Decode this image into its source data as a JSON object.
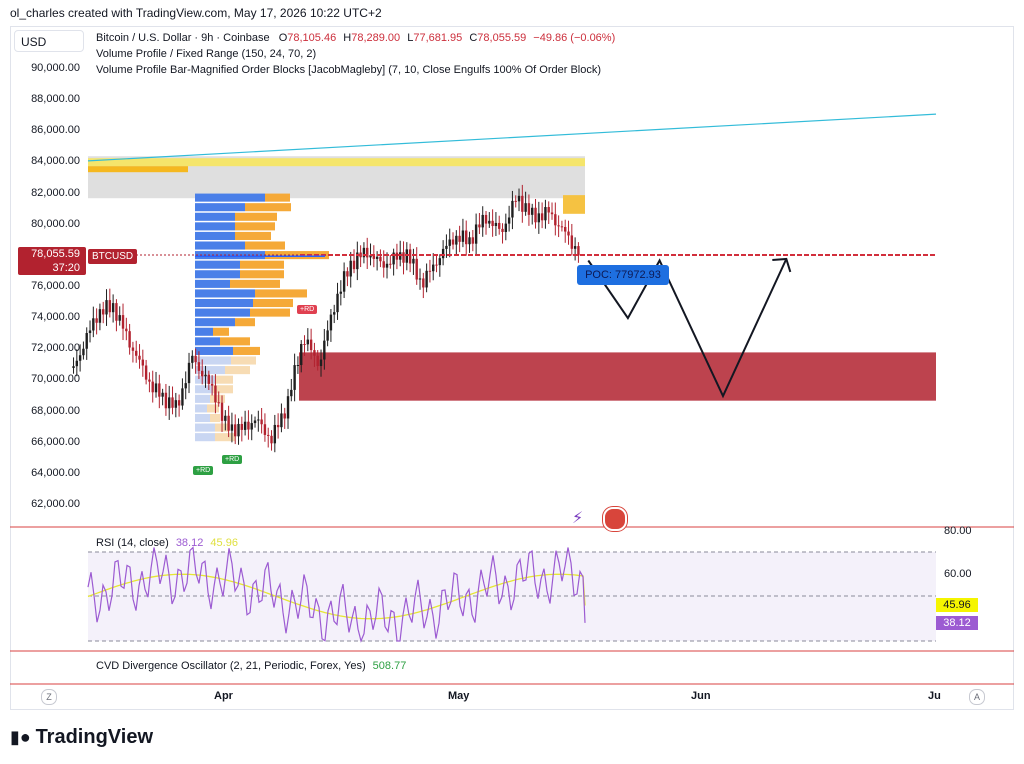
{
  "credit": "ol_charles created with TradingView.com, May 17, 2026 10:22 UTC+2",
  "currency": "USD",
  "legend": {
    "symbol": "Bitcoin / U.S. Dollar · 9h · Coinbase",
    "o_label": "O",
    "o_value": "78,105.46",
    "h_label": "H",
    "h_value": "78,289.00",
    "l_label": "L",
    "l_value": "77,681.95",
    "c_label": "C",
    "c_value": "78,055.59",
    "change": "−49.86 (−0.06%)",
    "line2": "Volume Profile / Fixed Range (150, 24, 70, 2)",
    "line3": "Volume Profile Bar-Magnified Order Blocks [JacobMagleby] (7, 10, Close Engulfs 100% Of Order Block)"
  },
  "price_tag": {
    "price": "78,055.59",
    "countdown": "37:20",
    "symbol": "BTCUSD"
  },
  "poc_label": "POC: 77972.93",
  "rd_labels": [
    "+RD",
    "+RD",
    "+RD"
  ],
  "rsi": {
    "title": "RSI (14, close)",
    "value1": "38.12",
    "value2": "45.96",
    "axis": [
      "80.00",
      "60.00"
    ]
  },
  "cvd": {
    "title": "CVD Divergence Oscillator (2, 21, Periodic, Forex, Yes)",
    "value": "508.77"
  },
  "bottom": {
    "left_btn": "Z",
    "right_btn": "A"
  },
  "footer": {
    "brand": "TradingView"
  },
  "colors": {
    "up": "#089981",
    "down": "#b2222f",
    "zone": "#b2222f",
    "poc": "#1e6fe0",
    "trend": "#33bcd9",
    "rsi": "#9c5bd2",
    "rsi_ma": "#e6e633"
  },
  "chart_data": {
    "type": "candlestick",
    "title": "Bitcoin / U.S. Dollar · 9h · Coinbase",
    "y_ticks": [
      90000,
      88000,
      86000,
      84000,
      82000,
      80000,
      78000,
      76000,
      74000,
      72000,
      70000,
      68000,
      66000,
      64000,
      62000
    ],
    "y_tick_labels": [
      "90,000.00",
      "88,000.00",
      "86,000.00",
      "84,000.00",
      "82,000.00",
      "80,000.00",
      "78,000.00",
      "76,000.00",
      "74,000.00",
      "72,000.00",
      "70,000.00",
      "68,000.00",
      "66,000.00",
      "64,000.00",
      "62,000.00"
    ],
    "ylim": [
      60500,
      92000
    ],
    "x_labels": [
      "Apr",
      "May",
      "Jun",
      "Ju"
    ],
    "price_path": [
      {
        "d": "Mar 13",
        "p": 70800
      },
      {
        "d": "Mar 16",
        "p": 74300
      },
      {
        "d": "Mar 18",
        "p": 74800
      },
      {
        "d": "Mar 20",
        "p": 72500
      },
      {
        "d": "Mar 23",
        "p": 69500
      },
      {
        "d": "Mar 26",
        "p": 68200
      },
      {
        "d": "Mar 28",
        "p": 71500
      },
      {
        "d": "Mar 31",
        "p": 69000
      },
      {
        "d": "Apr 1",
        "p": 67200
      },
      {
        "d": "Apr 3",
        "p": 66800
      },
      {
        "d": "Apr 5",
        "p": 67500
      },
      {
        "d": "Apr 7",
        "p": 66200
      },
      {
        "d": "Apr 9",
        "p": 68500
      },
      {
        "d": "Apr 11",
        "p": 72800
      },
      {
        "d": "Apr 13",
        "p": 71000
      },
      {
        "d": "Apr 15",
        "p": 75000
      },
      {
        "d": "Apr 17",
        "p": 77500
      },
      {
        "d": "Apr 19",
        "p": 78300
      },
      {
        "d": "Apr 21",
        "p": 77400
      },
      {
        "d": "Apr 24",
        "p": 78200
      },
      {
        "d": "Apr 26",
        "p": 76200
      },
      {
        "d": "Apr 28",
        "p": 77800
      },
      {
        "d": "Apr 30",
        "p": 79200
      },
      {
        "d": "May 2",
        "p": 79000
      },
      {
        "d": "May 4",
        "p": 80500
      },
      {
        "d": "May 6",
        "p": 79500
      },
      {
        "d": "May 8",
        "p": 81800
      },
      {
        "d": "May 10",
        "p": 80500
      },
      {
        "d": "May 12",
        "p": 80800
      },
      {
        "d": "May 14",
        "p": 79500
      },
      {
        "d": "May 16",
        "p": 78055
      }
    ],
    "projection_path": [
      {
        "d": "May 17",
        "p": 77700
      },
      {
        "d": "May 22",
        "p": 74000
      },
      {
        "d": "May 26",
        "p": 77700
      },
      {
        "d": "Jun 3",
        "p": 69000
      },
      {
        "d": "Jun 11",
        "p": 77800
      }
    ],
    "current_price": 78055.59,
    "poc": 77972.93,
    "order_block_zone": {
      "low": 68700,
      "high": 71800
    },
    "supply_zone": {
      "low": 81700,
      "high": 84400
    },
    "trendline": {
      "start": 84100,
      "end": 87100
    },
    "rsi_last": 38.12,
    "rsi_ma_last": 45.96
  }
}
